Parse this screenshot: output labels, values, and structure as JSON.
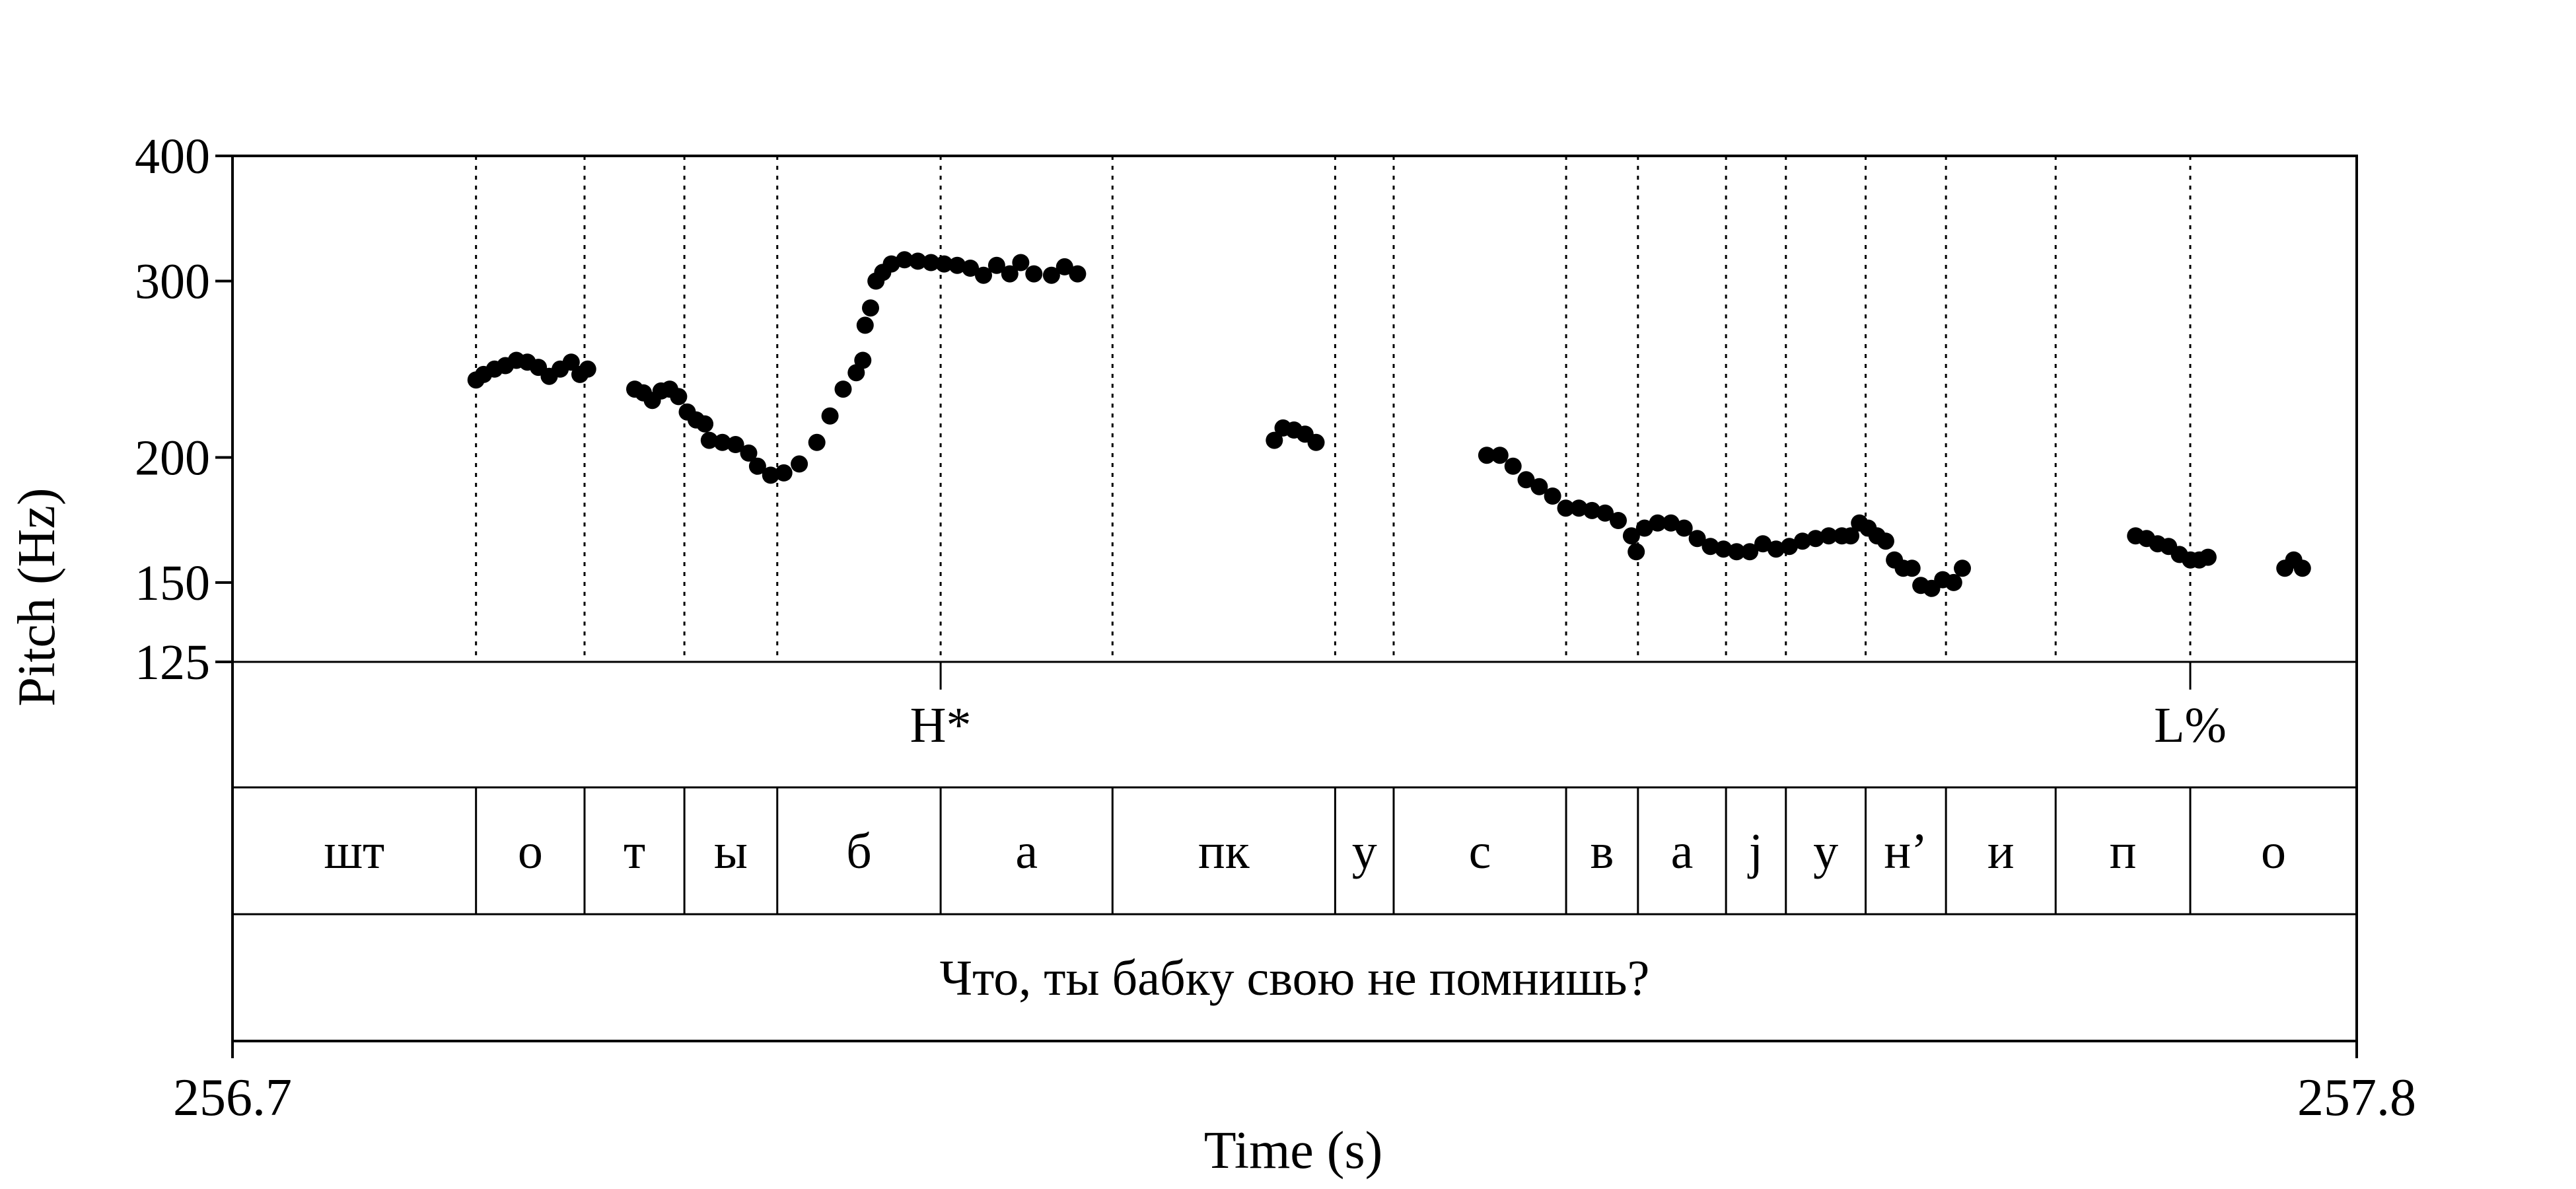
{
  "chart_data": {
    "type": "scatter",
    "title": "",
    "xlabel": "Time (s)",
    "ylabel": "Pitch (Hz)",
    "xlim": [
      256.7,
      257.8
    ],
    "ylim": [
      125,
      400
    ],
    "yscale": "log",
    "yticks": [
      {
        "value": 400,
        "label": "400"
      },
      {
        "value": 300,
        "label": "300"
      },
      {
        "value": 200,
        "label": "200"
      },
      {
        "value": 150,
        "label": "150"
      },
      {
        "value": 125,
        "label": "125"
      }
    ],
    "xticks": [
      {
        "value": 256.7,
        "label": "256.7"
      },
      {
        "value": 257.8,
        "label": "257.8"
      }
    ],
    "grid": "vertical dotted lines at segment boundaries",
    "marker_color": "#000000",
    "pitch_contours": [
      [
        [
          256.8261,
          239
        ],
        [
          256.83,
          242
        ],
        [
          256.8357,
          245
        ],
        [
          256.8413,
          247
        ],
        [
          256.847,
          250
        ],
        [
          256.8527,
          249
        ],
        [
          256.8584,
          246
        ],
        [
          256.864,
          241
        ],
        [
          256.8697,
          245
        ],
        [
          256.8754,
          249
        ],
        [
          256.8799,
          242
        ],
        [
          256.8839,
          245
        ]
      ],
      [
        [
          256.9083,
          234
        ],
        [
          256.9128,
          232
        ],
        [
          256.9174,
          228
        ],
        [
          256.9219,
          233
        ],
        [
          256.9264,
          234
        ],
        [
          256.931,
          230
        ],
        [
          256.9355,
          222
        ],
        [
          256.9401,
          218
        ],
        [
          256.9446,
          216
        ]
      ],
      [
        [
          256.9469,
          208
        ],
        [
          256.9537,
          207
        ],
        [
          256.9605,
          206
        ],
        [
          256.9673,
          202
        ],
        [
          256.9719,
          196
        ],
        [
          256.9787,
          192
        ],
        [
          256.9855,
          193
        ],
        [
          256.9935,
          197
        ],
        [
          257.0026,
          207
        ],
        [
          257.0094,
          220
        ],
        [
          257.0162,
          234
        ],
        [
          257.023,
          243
        ],
        [
          257.0264,
          250
        ]
      ],
      [
        [
          257.0276,
          271
        ],
        [
          257.0304,
          282
        ],
        [
          257.0332,
          300
        ],
        [
          257.0367,
          306
        ],
        [
          257.0412,
          312
        ],
        [
          257.048,
          315
        ],
        [
          257.0549,
          314
        ],
        [
          257.0617,
          313
        ],
        [
          257.0685,
          312
        ],
        [
          257.0753,
          311
        ],
        [
          257.0821,
          309
        ],
        [
          257.0889,
          304
        ],
        [
          257.0957,
          311
        ],
        [
          257.1025,
          305
        ],
        [
          257.1082,
          313
        ],
        [
          257.115,
          305
        ],
        [
          257.1241,
          304
        ],
        [
          257.1309,
          310
        ],
        [
          257.1376,
          305
        ]
      ],
      [
        [
          257.2395,
          208
        ],
        [
          257.244,
          214
        ],
        [
          257.2497,
          213
        ],
        [
          257.2554,
          211
        ],
        [
          257.2611,
          207
        ]
      ],
      [
        [
          257.3495,
          201
        ],
        [
          257.3563,
          201
        ],
        [
          257.3631,
          196
        ],
        [
          257.3699,
          190
        ],
        [
          257.3767,
          187
        ],
        [
          257.3836,
          183
        ],
        [
          257.3904,
          178
        ],
        [
          257.3972,
          178
        ],
        [
          257.404,
          177
        ],
        [
          257.4108,
          176
        ],
        [
          257.4176,
          173
        ],
        [
          257.4244,
          167
        ],
        [
          257.4269,
          161
        ],
        [
          257.4312,
          170
        ],
        [
          257.438,
          172
        ],
        [
          257.4449,
          172
        ],
        [
          257.4517,
          170
        ],
        [
          257.4585,
          166
        ],
        [
          257.4653,
          163
        ],
        [
          257.4721,
          162
        ],
        [
          257.4789,
          161
        ],
        [
          257.4857,
          161
        ],
        [
          257.4925,
          164
        ],
        [
          257.4993,
          162
        ],
        [
          257.5062,
          163
        ],
        [
          257.513,
          165
        ],
        [
          257.5198,
          166
        ],
        [
          257.5266,
          167
        ],
        [
          257.5334,
          167
        ],
        [
          257.538,
          167
        ]
      ],
      [
        [
          257.5425,
          172
        ],
        [
          257.547,
          170
        ],
        [
          257.5516,
          167
        ],
        [
          257.5561,
          165
        ],
        [
          257.5606,
          158
        ],
        [
          257.5652,
          155
        ],
        [
          257.5697,
          155
        ],
        [
          257.5743,
          149
        ],
        [
          257.5799,
          148
        ],
        [
          257.5856,
          151
        ],
        [
          257.5913,
          150
        ],
        [
          257.5958,
          155
        ]
      ],
      [
        [
          257.6855,
          167
        ],
        [
          257.6912,
          166
        ],
        [
          257.6969,
          164
        ],
        [
          257.7026,
          163
        ],
        [
          257.7082,
          160
        ],
        [
          257.7139,
          158
        ],
        [
          257.7185,
          158
        ],
        [
          257.723,
          159
        ]
      ],
      [
        [
          257.7628,
          155
        ],
        [
          257.7674,
          158
        ],
        [
          257.7719,
          155
        ]
      ]
    ],
    "boundaries": [
      256.8261,
      256.8823,
      256.934,
      256.9821,
      257.0667,
      257.1557,
      257.271,
      257.3013,
      257.3906,
      257.4278,
      257.4734,
      257.5044,
      257.5457,
      257.5873,
      257.6441,
      257.7138
    ],
    "tone_tier": [
      {
        "label": "H*",
        "time": 257.0667
      },
      {
        "label": "L%",
        "time": 257.7138
      }
    ],
    "segment_tier": [
      {
        "label": "шт",
        "start": 256.7,
        "end": 256.8261
      },
      {
        "label": "о",
        "start": 256.8261,
        "end": 256.8823
      },
      {
        "label": "т",
        "start": 256.8823,
        "end": 256.934
      },
      {
        "label": "ы",
        "start": 256.934,
        "end": 256.9821
      },
      {
        "label": "б",
        "start": 256.9821,
        "end": 257.0667
      },
      {
        "label": "а",
        "start": 257.0667,
        "end": 257.1557
      },
      {
        "label": "пк",
        "start": 257.1557,
        "end": 257.271
      },
      {
        "label": "у",
        "start": 257.271,
        "end": 257.3013
      },
      {
        "label": "с",
        "start": 257.3013,
        "end": 257.3906
      },
      {
        "label": "в",
        "start": 257.3906,
        "end": 257.4278
      },
      {
        "label": "а",
        "start": 257.4278,
        "end": 257.4734
      },
      {
        "label": "j",
        "start": 257.4734,
        "end": 257.5044
      },
      {
        "label": "у",
        "start": 257.5044,
        "end": 257.5457
      },
      {
        "label": "н’",
        "start": 257.5457,
        "end": 257.5873
      },
      {
        "label": "и",
        "start": 257.5873,
        "end": 257.6441
      },
      {
        "label": "п",
        "start": 257.6441,
        "end": 257.7138
      },
      {
        "label": "о",
        "start": 257.7138,
        "end": 257.8
      }
    ],
    "sentence_tier": {
      "label": "Что, ты бабку свою не помнишь?",
      "start": 256.7,
      "end": 257.8
    }
  }
}
